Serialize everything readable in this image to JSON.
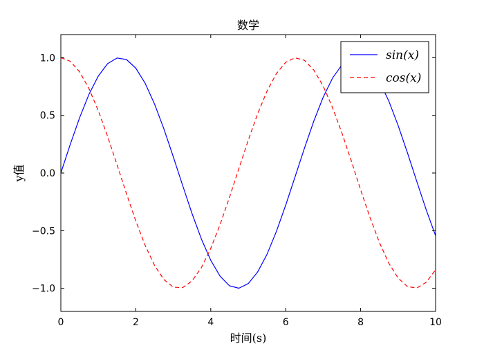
{
  "chart_data": {
    "type": "line",
    "title": "数学",
    "xlabel": "时间(s)",
    "ylabel": "y值",
    "xlim": [
      0,
      10
    ],
    "ylim": [
      -1.2,
      1.2
    ],
    "xticks": [
      0,
      2,
      4,
      6,
      8,
      10
    ],
    "xtick_labels": [
      "0",
      "2",
      "4",
      "6",
      "8",
      "10"
    ],
    "yticks": [
      -1.0,
      -0.5,
      0.0,
      0.5,
      1.0
    ],
    "ytick_labels": [
      "−1.0",
      "−0.5",
      "0.0",
      "0.5",
      "1.0"
    ],
    "grid": false,
    "legend_position": "top-right",
    "series": [
      {
        "name": "sin(x)",
        "color": "#0000ff",
        "linestyle": "solid",
        "x": [
          0,
          0.25,
          0.5,
          0.75,
          1,
          1.25,
          1.5,
          1.75,
          2,
          2.25,
          2.5,
          2.75,
          3,
          3.25,
          3.5,
          3.75,
          4,
          4.25,
          4.5,
          4.75,
          5,
          5.25,
          5.5,
          5.75,
          6,
          6.25,
          6.5,
          6.75,
          7,
          7.25,
          7.5,
          7.75,
          8,
          8.25,
          8.5,
          8.75,
          9,
          9.25,
          9.5,
          9.75,
          10
        ],
        "y": [
          0,
          0.247,
          0.479,
          0.682,
          0.841,
          0.949,
          0.997,
          0.984,
          0.909,
          0.778,
          0.598,
          0.382,
          0.141,
          -0.108,
          -0.351,
          -0.572,
          -0.757,
          -0.895,
          -0.978,
          -0.999,
          -0.959,
          -0.859,
          -0.706,
          -0.508,
          -0.279,
          -0.033,
          0.215,
          0.45,
          0.657,
          0.823,
          0.938,
          0.995,
          0.989,
          0.922,
          0.798,
          0.625,
          0.412,
          0.174,
          -0.075,
          -0.32,
          -0.544
        ]
      },
      {
        "name": "cos(x)",
        "color": "#ff0000",
        "linestyle": "dashed",
        "x": [
          0,
          0.25,
          0.5,
          0.75,
          1,
          1.25,
          1.5,
          1.75,
          2,
          2.25,
          2.5,
          2.75,
          3,
          3.25,
          3.5,
          3.75,
          4,
          4.25,
          4.5,
          4.75,
          5,
          5.25,
          5.5,
          5.75,
          6,
          6.25,
          6.5,
          6.75,
          7,
          7.25,
          7.5,
          7.75,
          8,
          8.25,
          8.5,
          8.75,
          9,
          9.25,
          9.5,
          9.75,
          10
        ],
        "y": [
          1,
          0.969,
          0.878,
          0.732,
          0.54,
          0.315,
          0.071,
          -0.178,
          -0.416,
          -0.628,
          -0.801,
          -0.924,
          -0.99,
          -0.994,
          -0.936,
          -0.821,
          -0.654,
          -0.446,
          -0.211,
          0.038,
          0.284,
          0.512,
          0.709,
          0.861,
          0.96,
          0.999,
          0.977,
          0.893,
          0.754,
          0.567,
          0.347,
          0.105,
          -0.146,
          -0.386,
          -0.602,
          -0.781,
          -0.911,
          -0.985,
          -0.997,
          -0.947,
          -0.839
        ]
      }
    ]
  }
}
